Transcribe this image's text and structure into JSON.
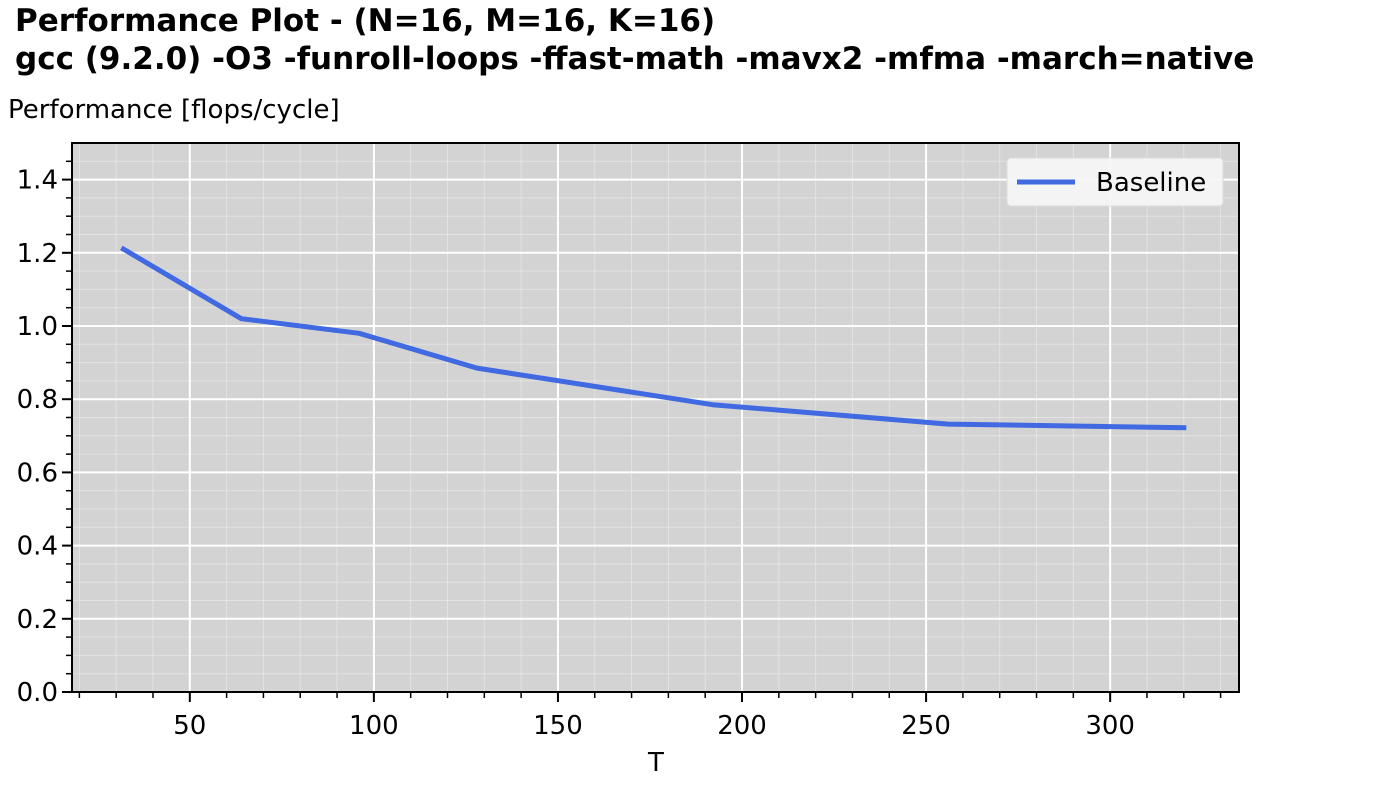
{
  "title_line1": "Performance Plot  -  (N=16, M=16, K=16)",
  "title_line2": "gcc (9.2.0) -O3 -funroll-loops -ffast-math -mavx2 -mfma -march=native",
  "chart_data": {
    "type": "line",
    "title": "Performance Plot  -  (N=16, M=16, K=16)",
    "subtitle": "gcc (9.2.0) -O3 -funroll-loops -ffast-math -mavx2 -mfma -march=native",
    "xlabel": "T",
    "ylabel": "Performance [flops/cycle]",
    "xlim": [
      18,
      335
    ],
    "ylim": [
      0.0,
      1.5
    ],
    "xticks": [
      50,
      100,
      150,
      200,
      250,
      300
    ],
    "yticks": [
      0.0,
      0.2,
      0.4,
      0.6,
      0.8,
      1.0,
      1.2,
      1.4
    ],
    "xtick_labels": [
      "50",
      "100",
      "150",
      "200",
      "250",
      "300"
    ],
    "ytick_labels": [
      "0.0",
      "0.2",
      "0.4",
      "0.6",
      "0.8",
      "1.0",
      "1.2",
      "1.4"
    ],
    "grid": true,
    "background": "#d3d3d3",
    "legend_position": "top-right",
    "series": [
      {
        "name": "Baseline",
        "color": "#4169e1",
        "x": [
          32,
          64,
          96,
          128,
          192,
          256,
          320
        ],
        "y": [
          1.21,
          1.02,
          0.98,
          0.885,
          0.785,
          0.732,
          0.722
        ]
      }
    ]
  }
}
